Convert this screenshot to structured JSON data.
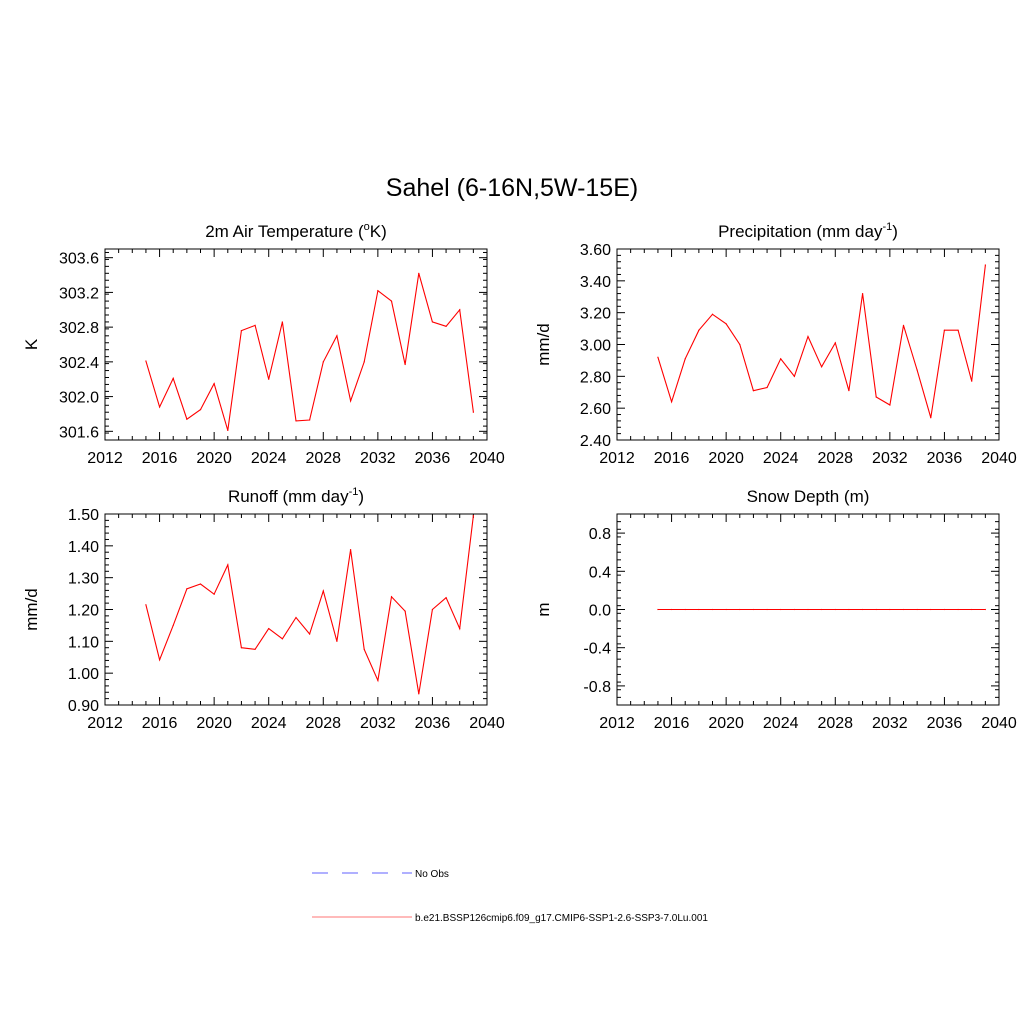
{
  "figure": {
    "title": "Sahel (6-16N,5W-15E)"
  },
  "colors": {
    "model_line": "#ff0000",
    "obs_line": "#8080ff",
    "axis": "#000000",
    "legend_model": "#ff9090"
  },
  "legend": {
    "obs_label": "No Obs",
    "model_label": "b.e21.BSSP126cmip6.f09_g17.CMIP6-SSP1-2.6-SSP3-7.0Lu.001"
  },
  "chart_data": [
    {
      "id": "temp",
      "type": "line",
      "title": "2m Air Temperature (",
      "title_sup": "o",
      "title_after": "K)",
      "title_end": "",
      "ylabel": "K",
      "xlim": [
        2012,
        2040
      ],
      "xticks": [
        2012,
        2016,
        2020,
        2024,
        2028,
        2032,
        2036,
        2040
      ],
      "ylim": [
        301.5,
        303.7
      ],
      "yticks": [
        301.6,
        302.0,
        302.4,
        302.8,
        303.2,
        303.6
      ],
      "ytick_labels": [
        "301.6",
        "302.0",
        "302.4",
        "302.8",
        "303.2",
        "303.6"
      ],
      "x": [
        2015,
        2016,
        2017,
        2018,
        2019,
        2020,
        2021,
        2022,
        2023,
        2024,
        2025,
        2026,
        2027,
        2028,
        2029,
        2030,
        2031,
        2032,
        2033,
        2034,
        2035,
        2036,
        2037,
        2038,
        2039
      ],
      "y": [
        302.41,
        301.88,
        302.21,
        301.74,
        301.85,
        302.15,
        301.61,
        302.76,
        302.82,
        302.2,
        302.86,
        301.72,
        301.73,
        302.4,
        302.7,
        301.95,
        302.4,
        303.22,
        303.1,
        302.37,
        303.42,
        302.86,
        302.81,
        303.0,
        301.82
      ]
    },
    {
      "id": "precip",
      "type": "line",
      "title": "Precipitation (mm day",
      "title_sup": "-1",
      "title_after": ")",
      "title_end": "",
      "ylabel": "mm/d",
      "xlim": [
        2012,
        2040
      ],
      "xticks": [
        2012,
        2016,
        2020,
        2024,
        2028,
        2032,
        2036,
        2040
      ],
      "ylim": [
        2.4,
        3.6
      ],
      "yticks": [
        2.4,
        2.6,
        2.8,
        3.0,
        3.2,
        3.4,
        3.6
      ],
      "ytick_labels": [
        "2.40",
        "2.60",
        "2.80",
        "3.00",
        "3.20",
        "3.40",
        "3.60"
      ],
      "x": [
        2015,
        2016,
        2017,
        2018,
        2019,
        2020,
        2021,
        2022,
        2023,
        2024,
        2025,
        2026,
        2027,
        2028,
        2029,
        2030,
        2031,
        2032,
        2033,
        2034,
        2035,
        2036,
        2037,
        2038,
        2039
      ],
      "y": [
        2.92,
        2.64,
        2.91,
        3.09,
        3.19,
        3.13,
        3.0,
        2.71,
        2.73,
        2.91,
        2.8,
        3.05,
        2.86,
        3.01,
        2.71,
        3.32,
        2.67,
        2.62,
        3.12,
        2.84,
        2.54,
        3.09,
        3.09,
        2.77,
        3.5
      ]
    },
    {
      "id": "runoff",
      "type": "line",
      "title": "Runoff (mm day",
      "title_sup": "-1",
      "title_after": ")",
      "title_end": "",
      "ylabel": "mm/d",
      "xlim": [
        2012,
        2040
      ],
      "xticks": [
        2012,
        2016,
        2020,
        2024,
        2028,
        2032,
        2036,
        2040
      ],
      "ylim": [
        0.9,
        1.5
      ],
      "yticks": [
        0.9,
        1.0,
        1.1,
        1.2,
        1.3,
        1.4,
        1.5
      ],
      "ytick_labels": [
        "0.90",
        "1.00",
        "1.10",
        "1.20",
        "1.30",
        "1.40",
        "1.50"
      ],
      "x": [
        2015,
        2016,
        2017,
        2018,
        2019,
        2020,
        2021,
        2022,
        2023,
        2024,
        2025,
        2026,
        2027,
        2028,
        2029,
        2030,
        2031,
        2032,
        2033,
        2034,
        2035,
        2036,
        2037,
        2038,
        2039
      ],
      "y": [
        1.215,
        1.042,
        1.15,
        1.265,
        1.28,
        1.248,
        1.34,
        1.08,
        1.075,
        1.14,
        1.108,
        1.175,
        1.123,
        1.258,
        1.1,
        1.388,
        1.075,
        0.977,
        1.24,
        1.195,
        0.935,
        1.2,
        1.237,
        1.14,
        1.495
      ]
    },
    {
      "id": "snow",
      "type": "line",
      "title": "Snow Depth (m)",
      "title_sup": "",
      "title_after": "",
      "title_end": "",
      "ylabel": "m",
      "xlim": [
        2012,
        2040
      ],
      "xticks": [
        2012,
        2016,
        2020,
        2024,
        2028,
        2032,
        2036,
        2040
      ],
      "ylim": [
        -1.0,
        1.0
      ],
      "yticks": [
        -0.8,
        -0.4,
        0.0,
        0.4,
        0.8
      ],
      "ytick_labels": [
        "-0.8",
        "-0.4",
        "0.0",
        "0.4",
        "0.8"
      ],
      "x": [
        2015,
        2016,
        2017,
        2018,
        2019,
        2020,
        2021,
        2022,
        2023,
        2024,
        2025,
        2026,
        2027,
        2028,
        2029,
        2030,
        2031,
        2032,
        2033,
        2034,
        2035,
        2036,
        2037,
        2038,
        2039
      ],
      "y": [
        0,
        0,
        0,
        0,
        0,
        0,
        0,
        0,
        0,
        0,
        0,
        0,
        0,
        0,
        0,
        0,
        0,
        0,
        0,
        0,
        0,
        0,
        0,
        0,
        0
      ]
    }
  ]
}
